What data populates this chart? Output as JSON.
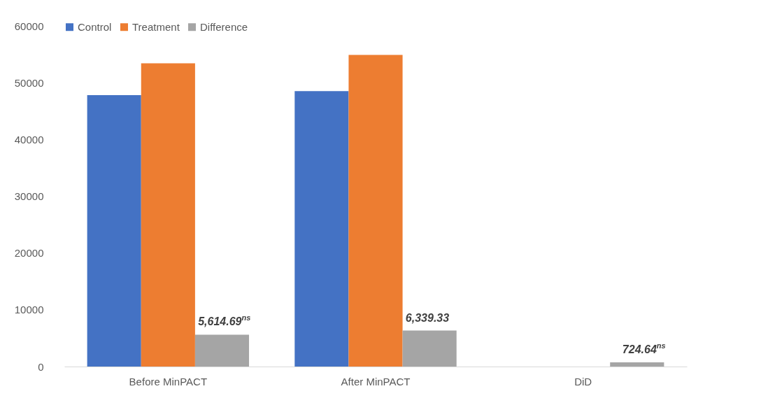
{
  "chart_data": {
    "type": "bar",
    "categories": [
      "Before MinPACT",
      "After MinPACT",
      "DiD"
    ],
    "series": [
      {
        "name": "Control",
        "color": "#4472c4",
        "values": [
          47800,
          48500,
          null
        ]
      },
      {
        "name": "Treatment",
        "color": "#ed7d31",
        "values": [
          53400,
          54900,
          null
        ]
      },
      {
        "name": "Difference",
        "color": "#a5a5a5",
        "values": [
          5614.69,
          6339.33,
          724.64
        ],
        "value_labels": [
          "5,614.69$^{ns}$",
          "6,339.33",
          "724.64$^{ns}$"
        ]
      }
    ],
    "ylim": [
      0,
      60000
    ],
    "yticks": [
      0,
      10000,
      20000,
      30000,
      40000,
      50000,
      60000
    ],
    "grid": false,
    "legend": "top"
  }
}
